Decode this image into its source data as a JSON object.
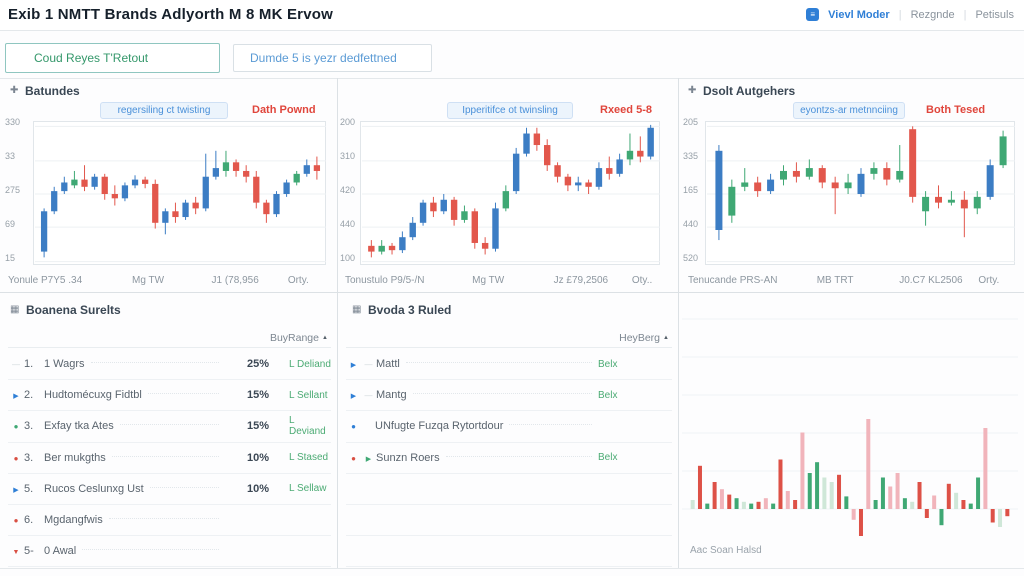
{
  "header": {
    "title": "Exib 1 NMTT Brands Adlyorth M 8 MK Ervow",
    "view_mode": "Vievl Moder",
    "link2": "Rezgnde",
    "link3": "Petisuls"
  },
  "filters": {
    "search_value": "Coud Reyes T'Retout",
    "dropdown_value": "Dumde 5 is yezr dedfettned"
  },
  "panels": {
    "p1": {
      "title": "Batundes",
      "pill": "regersiling ct twisting",
      "tag": "Dath Pownd"
    },
    "p2": {
      "pill": "Ipperitifce ot twinsling",
      "tag": "Rxeed 5-8"
    },
    "p3": {
      "title": "Dsolt Autgehers",
      "pill": "eyontzs-ar metnnciing",
      "tag": "Both Tesed"
    },
    "bar": {
      "footer": "Aac Soan Halsd"
    }
  },
  "tables": {
    "left": {
      "title": "Boanena Surelts",
      "col1": "Buy",
      "col2": "Range",
      "rows": [
        {
          "m": [
            [
              "dash",
              "gray"
            ]
          ],
          "num": "1.",
          "name": "1 Wagrs",
          "buy": "25%",
          "range": "L Deliand"
        },
        {
          "m": [
            [
              "tri",
              "blue"
            ]
          ],
          "num": "2.",
          "name": "Hudtomécuxg Fidtbl",
          "buy": "15%",
          "range": "L Sellant"
        },
        {
          "m": [
            [
              "dot",
              "green"
            ]
          ],
          "num": "3.",
          "name": "Exfay tka Ates",
          "buy": "15%",
          "range": "L Deviand"
        },
        {
          "m": [
            [
              "dot",
              "red"
            ]
          ],
          "num": "3.",
          "name": "Ber mukgths",
          "buy": "10%",
          "range": "L Stased"
        },
        {
          "m": [
            [
              "tri",
              "blue"
            ]
          ],
          "num": "5.",
          "name": "Rucos Ceslunxg Ust",
          "buy": "10%",
          "range": "L Sellaw"
        },
        {
          "m": [
            [
              "dot",
              "red"
            ]
          ],
          "num": "6.",
          "name": "Mgdangfwis",
          "buy": "",
          "range": ""
        },
        {
          "m": [
            [
              "tri_d",
              "red"
            ]
          ],
          "num": "5-",
          "name": "0 Awal",
          "buy": "",
          "range": ""
        }
      ]
    },
    "middle": {
      "title": "Bvoda 3 Ruled",
      "col1": "Hey",
      "col2": "Berg",
      "rows": [
        {
          "m": [
            [
              "tri",
              "blue"
            ],
            [
              "dash",
              "gray"
            ]
          ],
          "name": "Mattl",
          "buy": "Belx",
          "green": true
        },
        {
          "m": [
            [
              "tri",
              "blue"
            ],
            [
              "dash",
              "gray"
            ]
          ],
          "name": "Mantg",
          "buy": "Belx",
          "green": true
        },
        {
          "m": [
            [
              "dot",
              "blue"
            ]
          ],
          "name": "UNfugte Fuzqa Rytortdour",
          "indent": true,
          "buy": ""
        },
        {
          "m": [
            [
              "dot",
              "red"
            ],
            [
              "tri",
              "green"
            ]
          ],
          "name": "Sunzn Roers",
          "buy": "Belx",
          "green": true
        },
        {
          "empty": true
        },
        {
          "empty": true
        },
        {
          "empty": true
        }
      ]
    }
  },
  "chart_data": [
    {
      "id": "c1",
      "type": "candlestick",
      "panel": "Batundes",
      "up_color": "#3c7dc4",
      "down_color": "#e2574c",
      "alt_color": "#3fa874",
      "grid": true,
      "ylim": [
        0,
        100
      ],
      "ylabels": [
        "330",
        "33",
        "275",
        "69",
        "15"
      ],
      "xlabels": [
        "Yonule P7Y5 .34",
        "Mg TW",
        "J1 (78,956",
        "Orty."
      ],
      "candles": [
        [
          10,
          40,
          6,
          38,
          "b"
        ],
        [
          38,
          55,
          36,
          52,
          "b"
        ],
        [
          52,
          62,
          50,
          58,
          "b"
        ],
        [
          56,
          66,
          54,
          60,
          "g"
        ],
        [
          60,
          70,
          52,
          55,
          "r"
        ],
        [
          55,
          64,
          53,
          62,
          "b"
        ],
        [
          62,
          64,
          46,
          50,
          "r"
        ],
        [
          50,
          56,
          42,
          47,
          "r"
        ],
        [
          47,
          58,
          45,
          56,
          "b"
        ],
        [
          56,
          63,
          54,
          60,
          "b"
        ],
        [
          60,
          62,
          54,
          57,
          "r"
        ],
        [
          57,
          60,
          26,
          30,
          "r"
        ],
        [
          30,
          40,
          22,
          38,
          "b"
        ],
        [
          38,
          44,
          30,
          34,
          "r"
        ],
        [
          34,
          46,
          32,
          44,
          "b"
        ],
        [
          44,
          48,
          36,
          40,
          "r"
        ],
        [
          40,
          78,
          38,
          62,
          "b"
        ],
        [
          62,
          80,
          60,
          68,
          "b"
        ],
        [
          66,
          80,
          62,
          72,
          "g"
        ],
        [
          72,
          74,
          62,
          66,
          "r"
        ],
        [
          66,
          70,
          58,
          62,
          "r"
        ],
        [
          62,
          66,
          40,
          44,
          "r"
        ],
        [
          44,
          46,
          30,
          36,
          "r"
        ],
        [
          36,
          52,
          34,
          50,
          "b"
        ],
        [
          50,
          60,
          48,
          58,
          "b"
        ],
        [
          58,
          66,
          56,
          64,
          "g"
        ],
        [
          64,
          74,
          62,
          70,
          "b"
        ],
        [
          70,
          76,
          60,
          66,
          "r"
        ]
      ]
    },
    {
      "id": "c2",
      "type": "candlestick",
      "panel": "",
      "up_color": "#3c7dc4",
      "down_color": "#e2574c",
      "alt_color": "#3fa874",
      "grid": true,
      "ylim": [
        0,
        100
      ],
      "ylabels": [
        "200",
        "310",
        "420",
        "440",
        "100"
      ],
      "xlabels": [
        "Tonustulo P9/5-/N",
        "Mg TW",
        "Jz £79,2506",
        "Oty.."
      ],
      "candles": [
        [
          14,
          18,
          6,
          10,
          "r"
        ],
        [
          10,
          18,
          8,
          14,
          "g"
        ],
        [
          14,
          16,
          8,
          11,
          "r"
        ],
        [
          11,
          24,
          9,
          20,
          "b"
        ],
        [
          20,
          34,
          18,
          30,
          "b"
        ],
        [
          30,
          46,
          28,
          44,
          "b"
        ],
        [
          44,
          48,
          34,
          38,
          "r"
        ],
        [
          38,
          50,
          36,
          46,
          "b"
        ],
        [
          46,
          48,
          28,
          32,
          "r"
        ],
        [
          32,
          42,
          30,
          38,
          "g"
        ],
        [
          38,
          40,
          12,
          16,
          "r"
        ],
        [
          16,
          20,
          8,
          12,
          "r"
        ],
        [
          12,
          44,
          10,
          40,
          "b"
        ],
        [
          40,
          56,
          38,
          52,
          "g"
        ],
        [
          52,
          82,
          50,
          78,
          "b"
        ],
        [
          78,
          96,
          76,
          92,
          "b"
        ],
        [
          92,
          96,
          80,
          84,
          "r"
        ],
        [
          84,
          88,
          66,
          70,
          "r"
        ],
        [
          70,
          72,
          58,
          62,
          "r"
        ],
        [
          62,
          64,
          52,
          56,
          "r"
        ],
        [
          56,
          62,
          52,
          58,
          "b"
        ],
        [
          58,
          60,
          50,
          55,
          "r"
        ],
        [
          55,
          72,
          53,
          68,
          "b"
        ],
        [
          68,
          76,
          60,
          64,
          "r"
        ],
        [
          64,
          78,
          62,
          74,
          "b"
        ],
        [
          74,
          92,
          70,
          80,
          "g"
        ],
        [
          80,
          90,
          72,
          76,
          "r"
        ],
        [
          76,
          98,
          74,
          96,
          "b"
        ]
      ]
    },
    {
      "id": "c3",
      "type": "candlestick",
      "panel": "Dsolt Autgehers",
      "up_color": "#3c7dc4",
      "down_color": "#e2574c",
      "alt_color": "#3fa874",
      "grid": true,
      "ylim": [
        0,
        100
      ],
      "ylabels": [
        "205",
        "335",
        "165",
        "440",
        "520"
      ],
      "xlabels": [
        "Tenucande PRS-AN",
        "MB TRT",
        "J0.C7 KL2506",
        "Orty."
      ],
      "candles": [
        [
          25,
          84,
          18,
          80,
          "b"
        ],
        [
          35,
          60,
          30,
          55,
          "g"
        ],
        [
          55,
          68,
          52,
          58,
          "g"
        ],
        [
          58,
          62,
          48,
          52,
          "r"
        ],
        [
          52,
          64,
          50,
          60,
          "b"
        ],
        [
          60,
          70,
          56,
          66,
          "g"
        ],
        [
          66,
          72,
          58,
          62,
          "r"
        ],
        [
          62,
          74,
          60,
          68,
          "g"
        ],
        [
          68,
          70,
          54,
          58,
          "r"
        ],
        [
          58,
          62,
          36,
          54,
          "r"
        ],
        [
          54,
          64,
          50,
          58,
          "g"
        ],
        [
          50,
          68,
          48,
          64,
          "b"
        ],
        [
          64,
          72,
          60,
          68,
          "g"
        ],
        [
          68,
          72,
          56,
          60,
          "r"
        ],
        [
          60,
          84,
          58,
          66,
          "g"
        ],
        [
          95,
          97,
          44,
          48,
          "r"
        ],
        [
          38,
          52,
          28,
          48,
          "g"
        ],
        [
          48,
          56,
          40,
          44,
          "r"
        ],
        [
          44,
          52,
          42,
          46,
          "g"
        ],
        [
          46,
          52,
          20,
          40,
          "r"
        ],
        [
          40,
          52,
          36,
          48,
          "g"
        ],
        [
          48,
          74,
          46,
          70,
          "b"
        ],
        [
          70,
          94,
          68,
          90,
          "g"
        ]
      ]
    },
    {
      "id": "c4",
      "type": "bar",
      "footer": "Aac Soan Halsd",
      "grid": true,
      "baseline": 0,
      "ylim": [
        -35,
        100
      ],
      "bar_colors": {
        "r": "#dd5147",
        "g": "#3fa874",
        "lr": "#f1b4bb",
        "lg": "#cfe7d8"
      },
      "bars": [
        [
          10,
          "lg"
        ],
        [
          48,
          "r"
        ],
        [
          6,
          "g"
        ],
        [
          30,
          "r"
        ],
        [
          22,
          "lr"
        ],
        [
          16,
          "r"
        ],
        [
          12,
          "g"
        ],
        [
          8,
          "lg"
        ],
        [
          6,
          "g"
        ],
        [
          8,
          "r"
        ],
        [
          12,
          "lr"
        ],
        [
          6,
          "g"
        ],
        [
          55,
          "r"
        ],
        [
          20,
          "lr"
        ],
        [
          10,
          "r"
        ],
        [
          85,
          "lr"
        ],
        [
          40,
          "g"
        ],
        [
          52,
          "g"
        ],
        [
          35,
          "lg"
        ],
        [
          30,
          "lg"
        ],
        [
          38,
          "r"
        ],
        [
          14,
          "g"
        ],
        [
          -12,
          "lr"
        ],
        [
          -30,
          "r"
        ],
        [
          100,
          "lr"
        ],
        [
          10,
          "g"
        ],
        [
          35,
          "g"
        ],
        [
          25,
          "lr"
        ],
        [
          40,
          "lr"
        ],
        [
          12,
          "g"
        ],
        [
          8,
          "lg"
        ],
        [
          30,
          "r"
        ],
        [
          -10,
          "r"
        ],
        [
          15,
          "lr"
        ],
        [
          -18,
          "g"
        ],
        [
          28,
          "r"
        ],
        [
          18,
          "lg"
        ],
        [
          10,
          "r"
        ],
        [
          6,
          "g"
        ],
        [
          35,
          "g"
        ],
        [
          90,
          "lr"
        ],
        [
          -15,
          "r"
        ],
        [
          -20,
          "lg"
        ],
        [
          -8,
          "r"
        ]
      ]
    }
  ]
}
